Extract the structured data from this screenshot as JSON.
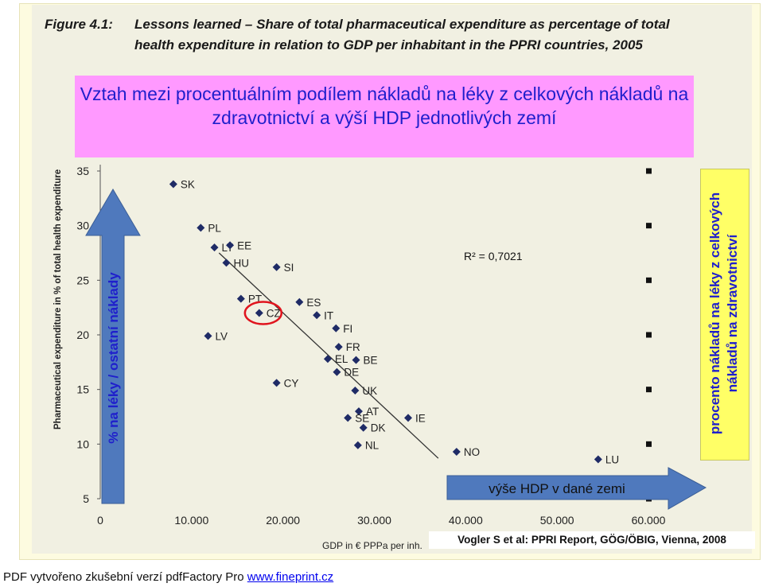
{
  "figure": {
    "label": "Figure 4.1:",
    "caption": "Lessons learned – Share of total pharmaceutical expenditure as percentage of total health expenditure in relation to GDP per inhabitant in the PPRI countries, 2005"
  },
  "overlay_title": "Vztah mezi procentuálním podílem nákladů na léky z celkových nákladů na zdravotnictví a výší HDP jednotlivých zemí",
  "y_arrow_label": "% na léky / ostatní náklady",
  "x_arrow_label": "výše HDP v dané zemi",
  "right_label": "procento nákladů na léky z celkových nákladů na zdravotnictví",
  "source": "Vogler S et al: PPRI Report, GÖG/ÖBIG, Vienna, 2008",
  "footer": {
    "text": "PDF vytvořeno zkušební verzí pdfFactory Pro",
    "link": "www.fineprint.cz"
  },
  "colors": {
    "title_bg": "#ff99ff",
    "title_text": "#1f1fcc",
    "arrow_fill": "#4f79bd",
    "right_box_bg": "#ffff66",
    "highlight_circle": "#e0141e",
    "point": "#1f2b66"
  },
  "chart_data": {
    "type": "scatter",
    "xlabel": "GDP in € PPPa per inh.",
    "ylabel": "Pharmaceutical expenditure in % of total health expenditure",
    "xlim": [
      0,
      60000
    ],
    "ylim": [
      5,
      35
    ],
    "xticks": [
      "0",
      "10.000",
      "20.000",
      "30.000",
      "40.000",
      "50.000",
      "60.000"
    ],
    "yticks": [
      "5",
      "10",
      "15",
      "20",
      "25",
      "30",
      "35"
    ],
    "annotation": "R² = 0,7021",
    "highlighted": "CZ",
    "trendline": [
      [
        13000,
        27.5
      ],
      [
        37000,
        8.7
      ]
    ],
    "points": [
      {
        "label": "SK",
        "x": 8000,
        "y": 33.8
      },
      {
        "label": "PL",
        "x": 11000,
        "y": 29.8
      },
      {
        "label": "LT",
        "x": 12500,
        "y": 28.0
      },
      {
        "label": "EE",
        "x": 14200,
        "y": 28.2
      },
      {
        "label": "HU",
        "x": 13800,
        "y": 26.6
      },
      {
        "label": "SI",
        "x": 19300,
        "y": 26.2
      },
      {
        "label": "PT",
        "x": 15400,
        "y": 23.3
      },
      {
        "label": "CZ",
        "x": 17400,
        "y": 22.0
      },
      {
        "label": "ES",
        "x": 21800,
        "y": 23.0
      },
      {
        "label": "IT",
        "x": 23700,
        "y": 21.8
      },
      {
        "label": "FI",
        "x": 25800,
        "y": 20.6
      },
      {
        "label": "LV",
        "x": 11800,
        "y": 19.9
      },
      {
        "label": "FR",
        "x": 26100,
        "y": 18.9
      },
      {
        "label": "EL",
        "x": 24900,
        "y": 17.8
      },
      {
        "label": "BE",
        "x": 28000,
        "y": 17.7
      },
      {
        "label": "DE",
        "x": 25900,
        "y": 16.6
      },
      {
        "label": "CY",
        "x": 19300,
        "y": 15.6
      },
      {
        "label": "UK",
        "x": 27900,
        "y": 14.9
      },
      {
        "label": "AT",
        "x": 28300,
        "y": 13.0
      },
      {
        "label": "SE",
        "x": 27100,
        "y": 12.4
      },
      {
        "label": "IE",
        "x": 33700,
        "y": 12.4
      },
      {
        "label": "DK",
        "x": 28800,
        "y": 11.5
      },
      {
        "label": "NL",
        "x": 28200,
        "y": 9.9
      },
      {
        "label": "NO",
        "x": 39000,
        "y": 9.3
      },
      {
        "label": "LU",
        "x": 54500,
        "y": 8.6
      }
    ]
  }
}
